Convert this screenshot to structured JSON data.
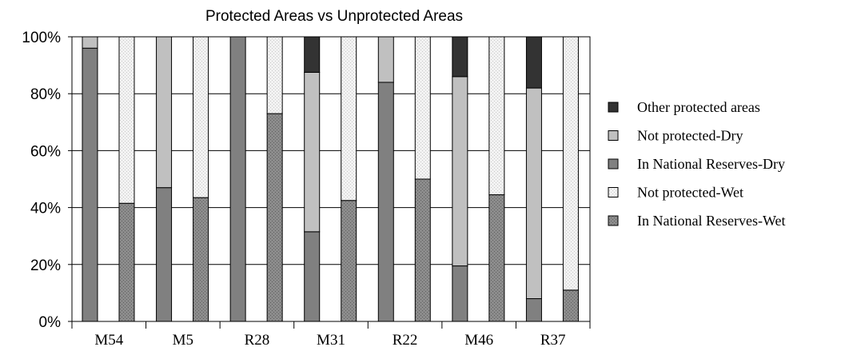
{
  "chart_data": {
    "type": "bar",
    "stacked": true,
    "title": "Protected Areas vs Unprotected Areas",
    "xlabel": "",
    "ylabel": "",
    "ylim": [
      0,
      100
    ],
    "yticks": [
      "0%",
      "20%",
      "40%",
      "60%",
      "80%",
      "100%"
    ],
    "categories": [
      "M54",
      "M5",
      "R28",
      "M31",
      "R22",
      "M46",
      "R37"
    ],
    "bar_groups": [
      "Dry",
      "Wet"
    ],
    "series": [
      {
        "name": "In National Reserves-Wet",
        "group": "Wet",
        "color": "#8c8c8c",
        "pattern": "dotted",
        "values": [
          41.5,
          43.5,
          73,
          42.5,
          50,
          44.5,
          11
        ]
      },
      {
        "name": "Not protected-Wet",
        "group": "Wet",
        "color": "#eeeeee",
        "pattern": "dotted",
        "values": [
          58.5,
          56.5,
          27,
          57.5,
          50,
          55.5,
          89
        ]
      },
      {
        "name": "In National Reserves-Dry",
        "group": "Dry",
        "color": "#808080",
        "pattern": "solid",
        "values": [
          96,
          47,
          100,
          31.5,
          84,
          19.5,
          8
        ]
      },
      {
        "name": "Not protected-Dry",
        "group": "Dry",
        "color": "#c0c0c0",
        "pattern": "solid",
        "values": [
          4,
          53,
          0,
          56,
          16,
          66.5,
          74
        ]
      },
      {
        "name": "Other protected areas",
        "group": "Dry",
        "color": "#333333",
        "pattern": "solid",
        "values": [
          0,
          0,
          0,
          12.5,
          0,
          14,
          18
        ]
      }
    ],
    "legend": {
      "position": "right",
      "order": [
        "Other protected areas",
        "Not protected-Dry",
        "In National Reserves-Dry",
        "Not protected-Wet",
        "In National Reserves-Wet"
      ]
    },
    "grid": true
  }
}
